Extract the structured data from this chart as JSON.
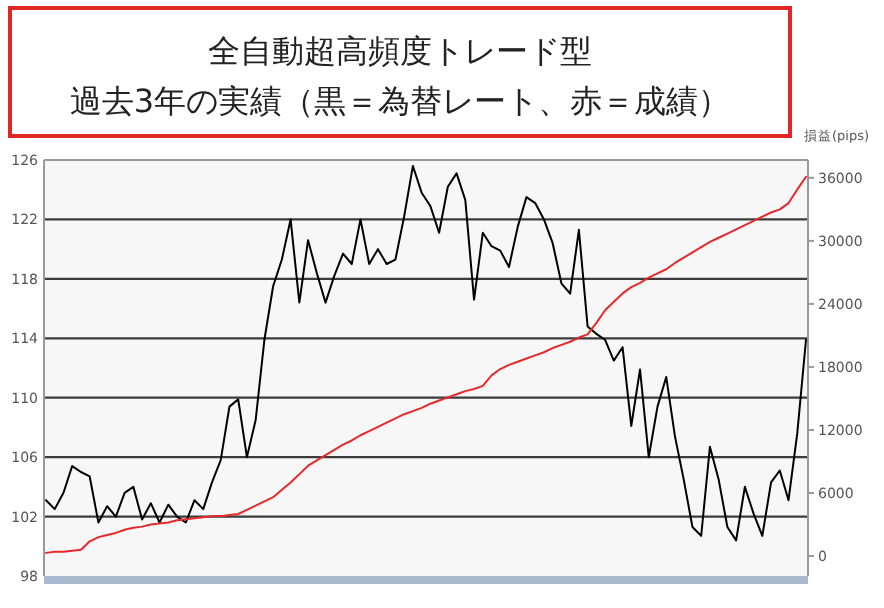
{
  "chart_data": {
    "type": "line",
    "title": "全自動超高頻度トレード型",
    "subtitle": "過去3年の実績（黒＝為替レート、赤＝成績）",
    "y2label": "損益(pips)",
    "categories": [
      null,
      null,
      null,
      null,
      null,
      null,
      null,
      null,
      null,
      null,
      null,
      null,
      null,
      null,
      null,
      null,
      null,
      null,
      null,
      null,
      null,
      null,
      null,
      null,
      null,
      null,
      null,
      null,
      null,
      null,
      null,
      null,
      null,
      null,
      null,
      null,
      null,
      null,
      null,
      null,
      null,
      null,
      null,
      null,
      null,
      null,
      null,
      null,
      null,
      null,
      null,
      null,
      null,
      null,
      null,
      null,
      null,
      null,
      null,
      null,
      null,
      null,
      null,
      null,
      null,
      null,
      null,
      null,
      null,
      null,
      null,
      null,
      null,
      null,
      null,
      null,
      null,
      null,
      null,
      null,
      null,
      null,
      null,
      null,
      null,
      null,
      null,
      null
    ],
    "ylim": [
      98,
      126
    ],
    "yticks": [
      98,
      102,
      106,
      110,
      114,
      118,
      122,
      126
    ],
    "y2lim": [
      -1900,
      37700
    ],
    "y2ticks": [
      0,
      6000,
      12000,
      18000,
      24000,
      30000,
      36000
    ],
    "grid": "y",
    "series": [
      {
        "color": "#000000",
        "values": [
          103.1,
          102.5,
          103.6,
          105.4,
          105,
          104.7,
          101.6,
          102.7,
          102,
          103.6,
          104,
          101.8,
          102.9,
          101.6,
          102.8,
          102,
          101.6,
          103.1,
          102.5,
          104.3,
          105.8,
          109.4,
          109.9,
          106,
          108.5,
          113.9,
          117.5,
          119.3,
          122,
          116.4,
          120.6,
          118.4,
          116.4,
          118.2,
          119.7,
          119,
          122,
          119,
          120,
          119,
          119.3,
          122.2,
          125.6,
          123.8,
          122.9,
          121.1,
          124.2,
          125.1,
          123.3,
          116.6,
          121.1,
          120.2,
          119.9,
          118.8,
          121.5,
          123.5,
          123.1,
          122,
          120.4,
          117.7,
          117,
          121.3,
          114.8,
          114.3,
          113.9,
          112.5,
          113.4,
          108.1,
          111.9,
          106,
          109.4,
          111.4,
          107.4,
          104.5,
          101.3,
          100.7,
          106.7,
          104.5,
          101.3,
          100.4,
          104,
          102.2,
          100.7,
          104.3,
          105.1,
          103.1,
          107.6,
          113.9
        ]
      },
      {
        "color": "#e8292b",
        "axis": "y2",
        "values": [
          300,
          400,
          400,
          500,
          600,
          1400,
          1800,
          2000,
          2200,
          2500,
          2700,
          2800,
          3000,
          3100,
          3200,
          3400,
          3500,
          3600,
          3700,
          3800,
          3800,
          3900,
          4000,
          4400,
          4800,
          5200,
          5600,
          6300,
          7000,
          7800,
          8600,
          9100,
          9600,
          10100,
          10600,
          11000,
          11500,
          11900,
          12300,
          12700,
          13100,
          13500,
          13800,
          14100,
          14500,
          14800,
          15100,
          15400,
          15700,
          15900,
          16200,
          17200,
          17800,
          18200,
          18500,
          18800,
          19100,
          19400,
          19800,
          20100,
          20400,
          20800,
          21100,
          22200,
          23400,
          24200,
          25000,
          25600,
          26000,
          26500,
          26900,
          27300,
          27900,
          28400,
          28900,
          29400,
          29900,
          30300,
          30700,
          31100,
          31500,
          31900,
          32300,
          32700,
          33000,
          33600,
          34900,
          36100
        ]
      }
    ]
  }
}
